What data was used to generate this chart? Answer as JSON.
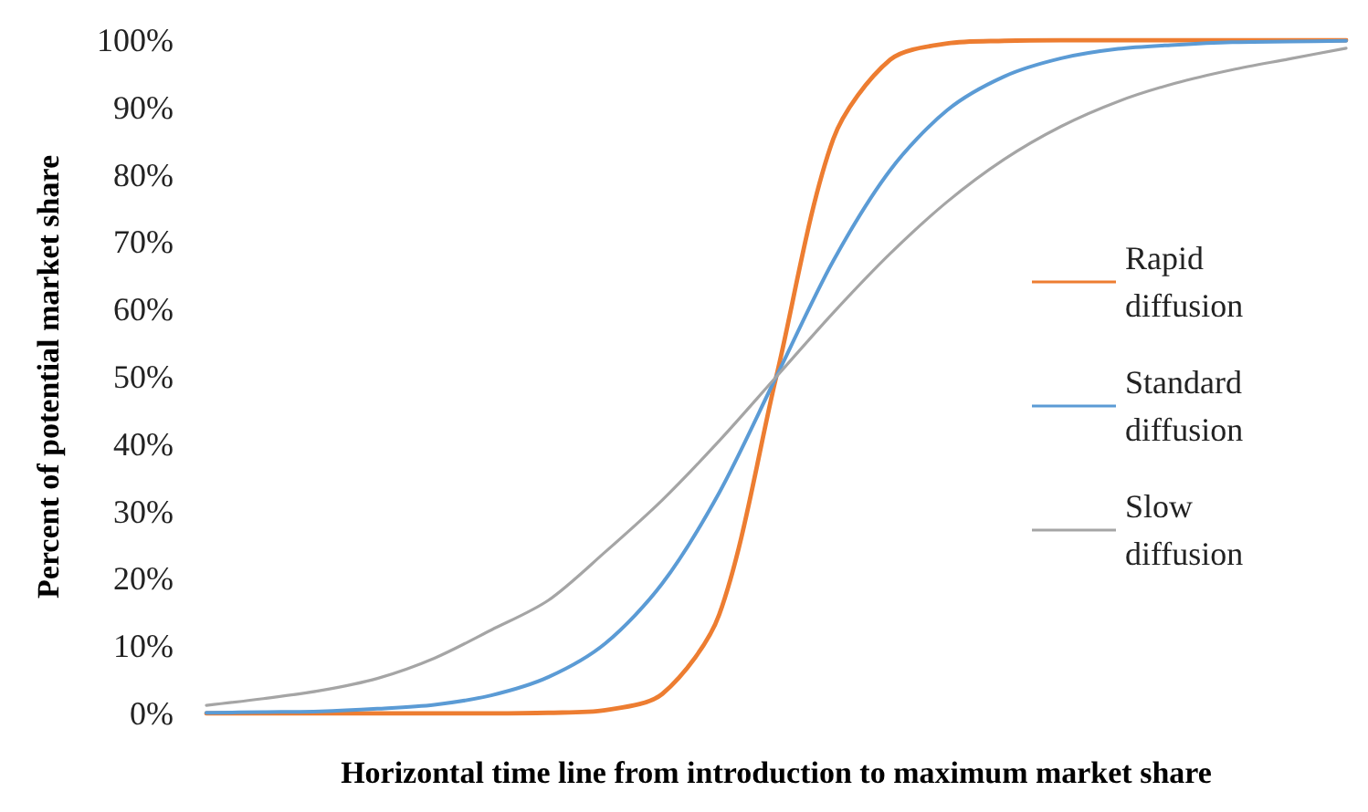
{
  "chart_data": {
    "type": "line",
    "xlabel": "Horizontal time line from introduction to maximum market share",
    "ylabel": "Percent of potential market share",
    "categories": [
      null,
      null,
      null,
      null,
      null,
      null,
      null,
      null,
      null,
      null,
      null,
      null,
      null,
      null,
      null,
      null,
      null,
      null,
      null,
      null,
      null
    ],
    "series": [
      {
        "name": "Rapid diffusion",
        "color": "#ed7d31",
        "values": [
          0,
          0,
          0,
          0,
          0,
          0,
          0.1,
          0.5,
          2.9,
          14.7,
          50,
          85.3,
          97.1,
          99.5,
          99.9,
          100,
          100,
          100,
          100,
          100,
          100
        ]
      },
      {
        "name": "Standard diffusion",
        "color": "#5b9bd5",
        "values": [
          0.1,
          0.2,
          0.3,
          0.7,
          1.3,
          2.7,
          5.4,
          10.4,
          19.3,
          32.8,
          50,
          67.2,
          80.7,
          89.6,
          94.6,
          97.3,
          98.7,
          99.3,
          99.7,
          99.8,
          99.9
        ]
      },
      {
        "name": "Slow diffusion",
        "color": "#a5a5a5",
        "values": [
          1.2,
          2.2,
          3.4,
          5.2,
          8.2,
          12.4,
          16.8,
          24,
          31.7,
          40.5,
          50,
          59.5,
          68.3,
          76,
          82.3,
          87.2,
          90.9,
          93.6,
          95.6,
          97.2,
          98.8
        ]
      }
    ],
    "ylim": [
      0,
      100
    ],
    "yticks": [
      {
        "value": 0,
        "label": "0%"
      },
      {
        "value": 10,
        "label": "10%"
      },
      {
        "value": 20,
        "label": "20%"
      },
      {
        "value": 30,
        "label": "30%"
      },
      {
        "value": 40,
        "label": "40%"
      },
      {
        "value": 50,
        "label": "50%"
      },
      {
        "value": 60,
        "label": "60%"
      },
      {
        "value": 70,
        "label": "70%"
      },
      {
        "value": 80,
        "label": "80%"
      },
      {
        "value": 90,
        "label": "90%"
      },
      {
        "value": 100,
        "label": "100%"
      }
    ],
    "tick_labels": "y",
    "grid": false,
    "legend": "right",
    "marker": "none",
    "line_style": "solid"
  }
}
